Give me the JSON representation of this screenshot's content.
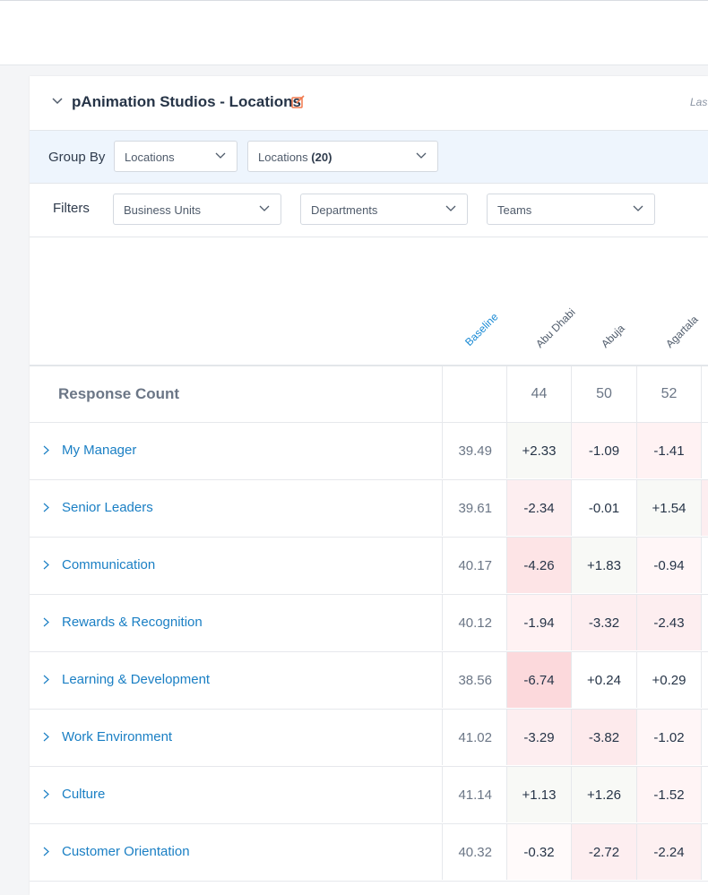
{
  "header": {
    "title": "pAnimation Studios - Locations",
    "last_label": "Last"
  },
  "group_by": {
    "label": "Group By",
    "select1": "Locations",
    "select2_text": "Locations",
    "select2_count": "(20)"
  },
  "filters": {
    "label": "Filters",
    "business_units": "Business Units",
    "departments": "Departments",
    "teams": "Teams"
  },
  "columns": {
    "baseline": "Baseline",
    "loc1": "Abu Dhabi",
    "loc2": "Abuja",
    "loc3": "Agartala"
  },
  "response_count": {
    "label": "Response Count",
    "values": [
      "44",
      "50",
      "52"
    ]
  },
  "rows": [
    {
      "label": "My Manager",
      "baseline": "39.49",
      "values": [
        "+2.33",
        "-1.09",
        "-1.41"
      ]
    },
    {
      "label": "Senior Leaders",
      "baseline": "39.61",
      "values": [
        "-2.34",
        "-0.01",
        "+1.54"
      ]
    },
    {
      "label": "Communication",
      "baseline": "40.17",
      "values": [
        "-4.26",
        "+1.83",
        "-0.94"
      ]
    },
    {
      "label": "Rewards & Recognition",
      "baseline": "40.12",
      "values": [
        "-1.94",
        "-3.32",
        "-2.43"
      ]
    },
    {
      "label": "Learning & Development",
      "baseline": "38.56",
      "values": [
        "-6.74",
        "+0.24",
        "+0.29"
      ]
    },
    {
      "label": "Work Environment",
      "baseline": "41.02",
      "values": [
        "-3.29",
        "-3.82",
        "-1.02"
      ]
    },
    {
      "label": "Culture",
      "baseline": "41.14",
      "values": [
        "+1.13",
        "+1.26",
        "-1.52"
      ]
    },
    {
      "label": "Customer Orientation",
      "baseline": "40.32",
      "values": [
        "-0.32",
        "-2.72",
        "-2.24"
      ]
    }
  ],
  "colors": {
    "accent": "#1a7fc4",
    "edit_icon": "#f0794d",
    "neg_strong": "#fde4e6",
    "neg_mid": "#fdeef0",
    "neg_light": "#fff6f7",
    "pos_light": "#f8f9f6"
  },
  "icons": {
    "collapse": "chevron-down-icon",
    "edit": "edit-icon",
    "dropdown": "chevron-down-icon",
    "expand": "chevron-right-icon"
  }
}
